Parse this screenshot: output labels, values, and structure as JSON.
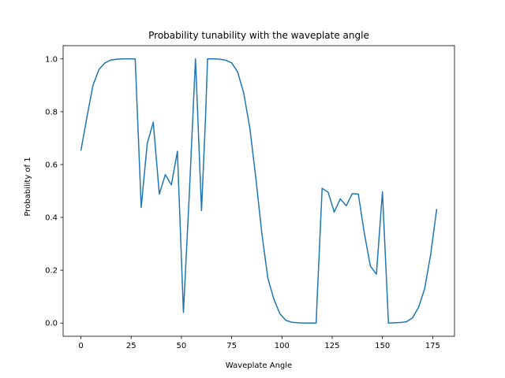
{
  "chart_data": {
    "type": "line",
    "title": "Probability tunability with the waveplate angle",
    "xlabel": "Waveplate Angle",
    "ylabel": "Probability of 1",
    "xlim": [
      -8.85,
      185.85
    ],
    "ylim": [
      -0.05,
      1.05
    ],
    "xticks": [
      0,
      25,
      50,
      75,
      100,
      125,
      150,
      175
    ],
    "yticks": [
      0.0,
      0.2,
      0.4,
      0.6,
      0.8,
      1.0
    ],
    "ytick_labels": [
      "0.0",
      "0.2",
      "0.4",
      "0.6",
      "0.8",
      "1.0"
    ],
    "grid": false,
    "line_color": "#1f77b4",
    "series": [
      {
        "x": [
          0,
          3,
          6,
          9,
          12,
          15,
          18,
          21,
          24,
          27,
          30,
          33,
          36,
          39,
          42,
          45,
          48,
          51,
          54,
          57,
          60,
          62,
          63,
          66,
          69,
          72,
          75,
          78,
          81,
          84,
          87,
          90,
          93,
          96,
          99,
          102,
          105,
          108,
          111,
          114,
          117,
          120,
          123,
          126,
          129,
          132,
          135,
          138,
          141,
          144,
          147,
          150,
          153,
          156,
          159,
          162,
          165,
          168,
          171,
          174,
          177
        ],
        "y": [
          0.653,
          0.78,
          0.9,
          0.96,
          0.985,
          0.996,
          0.999,
          1.0,
          1.0,
          1.0,
          0.438,
          0.68,
          0.76,
          0.488,
          0.562,
          0.523,
          0.65,
          0.04,
          0.5,
          1.0,
          0.426,
          0.78,
          1.0,
          1.0,
          0.999,
          0.995,
          0.985,
          0.95,
          0.87,
          0.74,
          0.55,
          0.34,
          0.17,
          0.09,
          0.035,
          0.01,
          0.003,
          0.001,
          0.0,
          0.0,
          0.0,
          0.51,
          0.495,
          0.42,
          0.47,
          0.444,
          0.49,
          0.488,
          0.34,
          0.215,
          0.185,
          0.497,
          0.0,
          0.001,
          0.002,
          0.005,
          0.02,
          0.06,
          0.13,
          0.26,
          0.432
        ]
      }
    ]
  }
}
